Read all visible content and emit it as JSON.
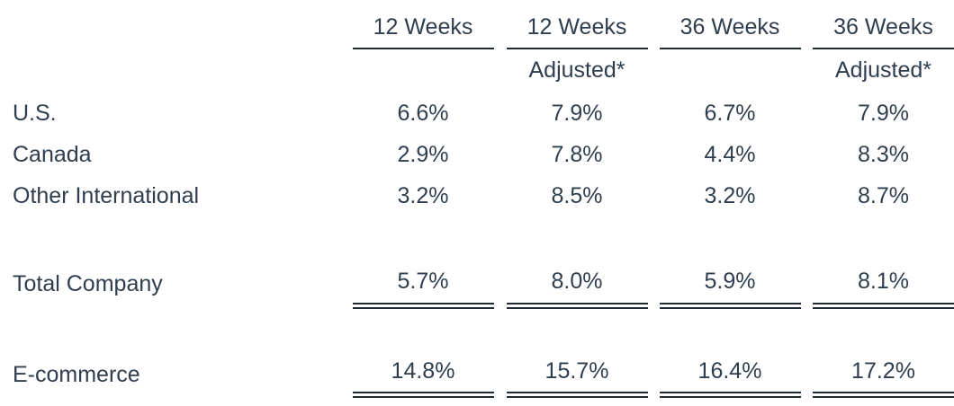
{
  "table": {
    "header": {
      "row1": [
        "12 Weeks",
        "12 Weeks",
        "36 Weeks",
        "36 Weeks"
      ],
      "row2": [
        "",
        "Adjusted*",
        "",
        "Adjusted*"
      ]
    },
    "rows": [
      {
        "label": "U.S.",
        "values": [
          "6.6%",
          "7.9%",
          "6.7%",
          "7.9%"
        ]
      },
      {
        "label": "Canada",
        "values": [
          "2.9%",
          "7.8%",
          "4.4%",
          "8.3%"
        ]
      },
      {
        "label": "Other International",
        "values": [
          "3.2%",
          "8.5%",
          "3.2%",
          "8.7%"
        ]
      },
      {
        "label": "Total Company",
        "values": [
          "5.7%",
          "8.0%",
          "5.9%",
          "8.1%"
        ]
      },
      {
        "label": "E-commerce",
        "values": [
          "14.8%",
          "15.7%",
          "16.4%",
          "17.2%"
        ]
      }
    ]
  }
}
